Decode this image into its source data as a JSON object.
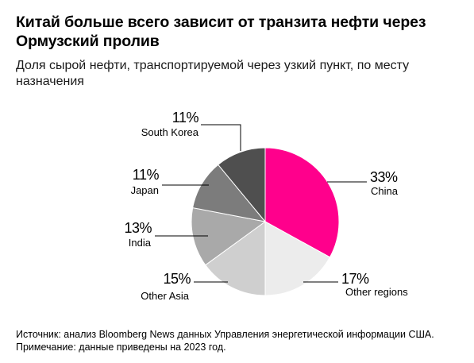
{
  "title": "Китай больше всего зависит от транзита нефти через Ормузский пролив",
  "subtitle": "Доля сырой нефти, транспортируемой через узкий пункт, по месту назначения",
  "footer": {
    "source": "Источник: анализ Bloomberg News данных Управления энергетической информации США.",
    "note": "Примечание: данные приведены на 2023 год."
  },
  "chart_data": {
    "type": "pie",
    "unit": "%",
    "slices": [
      {
        "label": "China",
        "value": 33,
        "color": "#ff008c"
      },
      {
        "label": "Other regions",
        "value": 17,
        "color": "#ececec"
      },
      {
        "label": "Other Asia",
        "value": 15,
        "color": "#cfcfcf"
      },
      {
        "label": "India",
        "value": 13,
        "color": "#a9a9a9"
      },
      {
        "label": "Japan",
        "value": 11,
        "color": "#7c7c7c"
      },
      {
        "label": "South Korea",
        "value": 11,
        "color": "#4f4f4f"
      }
    ]
  }
}
